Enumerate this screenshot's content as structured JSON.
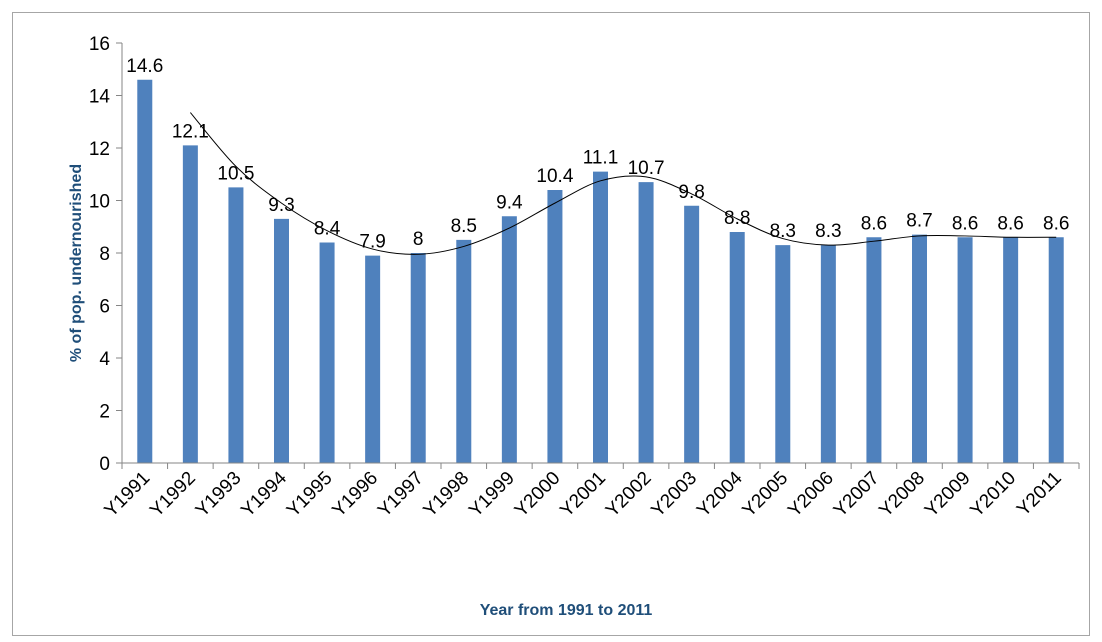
{
  "chart_data": {
    "type": "bar",
    "title": "",
    "xlabel": "Year from 1991 to 2011",
    "ylabel": "% of pop. undernourished",
    "ylim": [
      0,
      16
    ],
    "yticks": [
      0,
      2,
      4,
      6,
      8,
      10,
      12,
      14,
      16
    ],
    "grid": false,
    "legend": "none",
    "categories": [
      "Y1991",
      "Y1992",
      "Y1993",
      "Y1994",
      "Y1995",
      "Y1996",
      "Y1997",
      "Y1998",
      "Y1999",
      "Y2000",
      "Y2001",
      "Y2002",
      "Y2003",
      "Y2004",
      "Y2005",
      "Y2006",
      "Y2007",
      "Y2008",
      "Y2009",
      "Y2010",
      "Y2011"
    ],
    "values": [
      14.6,
      12.1,
      10.5,
      9.3,
      8.4,
      7.9,
      8,
      8.5,
      9.4,
      10.4,
      11.1,
      10.7,
      9.8,
      8.8,
      8.3,
      8.3,
      8.6,
      8.7,
      8.6,
      8.6,
      8.6
    ],
    "data_labels": [
      "14.6",
      "12.1",
      "10.5",
      "9.3",
      "8.4",
      "7.9",
      "8",
      "8.5",
      "9.4",
      "10.4",
      "11.1",
      "10.7",
      "9.8",
      "8.8",
      "8.3",
      "8.3",
      "8.6",
      "8.7",
      "8.6",
      "8.6",
      "8.6"
    ],
    "trendline": {
      "type": "moving-average",
      "from_category": "Y1992",
      "values": [
        13.35,
        11.3,
        9.9,
        8.85,
        8.15,
        7.95,
        8.25,
        8.95,
        9.9,
        10.75,
        10.9,
        10.25,
        9.3,
        8.55,
        8.3,
        8.45,
        8.65,
        8.65,
        8.6,
        8.6
      ]
    },
    "colors": {
      "bar": "#4f81bd",
      "trendline": "#000000",
      "axis_title": "#1f4e79"
    }
  }
}
